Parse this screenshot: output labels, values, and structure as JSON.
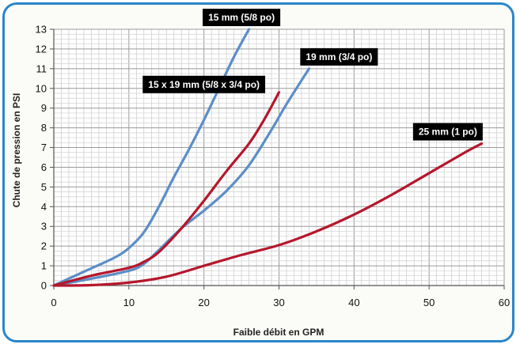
{
  "chart_data": {
    "type": "line",
    "title": "",
    "xlabel": "Faible débit en GPM",
    "ylabel": "Chute de pression en PSI",
    "xlim": [
      0,
      60
    ],
    "ylim": [
      0,
      13
    ],
    "xticks": [
      0,
      10,
      20,
      30,
      40,
      50,
      60
    ],
    "yticks": [
      0,
      1,
      2,
      3,
      4,
      5,
      6,
      7,
      8,
      9,
      10,
      11,
      12,
      13
    ],
    "grid": true,
    "colors": {
      "blue": "#5b8ec7",
      "red": "#b5172c",
      "label_bg": "#000000",
      "frame": "#2b86c8"
    },
    "series": [
      {
        "name": "15 mm (5/8 po)",
        "color": "#5b8ec7",
        "points": [
          [
            0,
            0
          ],
          [
            4,
            0.7
          ],
          [
            8,
            1.4
          ],
          [
            10,
            1.9
          ],
          [
            12,
            2.7
          ],
          [
            14,
            4.0
          ],
          [
            16,
            5.5
          ],
          [
            18,
            6.9
          ],
          [
            20,
            8.4
          ],
          [
            22,
            10.0
          ],
          [
            24,
            11.6
          ],
          [
            26,
            13.0
          ]
        ]
      },
      {
        "name": "19 mm (3/4 po)",
        "color": "#5b8ec7",
        "points": [
          [
            0,
            0
          ],
          [
            5,
            0.35
          ],
          [
            10,
            0.75
          ],
          [
            12,
            1.1
          ],
          [
            14,
            1.8
          ],
          [
            17,
            2.9
          ],
          [
            20,
            3.8
          ],
          [
            23,
            4.8
          ],
          [
            26,
            6.1
          ],
          [
            29,
            7.9
          ],
          [
            31,
            9.2
          ],
          [
            34,
            11.0
          ]
        ]
      },
      {
        "name": "15 x 19 mm (5/8 x 3/4 po)",
        "color": "#b5172c",
        "points": [
          [
            0,
            0
          ],
          [
            5,
            0.5
          ],
          [
            10,
            0.9
          ],
          [
            12,
            1.2
          ],
          [
            14,
            1.7
          ],
          [
            17,
            2.9
          ],
          [
            20,
            4.3
          ],
          [
            23,
            5.8
          ],
          [
            26,
            7.2
          ],
          [
            28,
            8.4
          ],
          [
            30,
            9.8
          ]
        ]
      },
      {
        "name": "25 mm (1 po)",
        "color": "#b5172c",
        "points": [
          [
            0,
            0
          ],
          [
            5,
            0.02
          ],
          [
            10,
            0.15
          ],
          [
            15,
            0.45
          ],
          [
            20,
            1.0
          ],
          [
            25,
            1.55
          ],
          [
            30,
            2.05
          ],
          [
            35,
            2.75
          ],
          [
            40,
            3.6
          ],
          [
            45,
            4.6
          ],
          [
            50,
            5.7
          ],
          [
            55,
            6.8
          ],
          [
            57,
            7.2
          ]
        ]
      }
    ],
    "annotations": [
      {
        "text": "15 mm (5/8 po)",
        "x": 25,
        "y": 13.6
      },
      {
        "text": "19 mm (3/4 po)",
        "x": 38,
        "y": 11.6
      },
      {
        "text": "15 x 19 mm (5/8 x 3/4 po)",
        "x": 20,
        "y": 10.2
      },
      {
        "text": "25 mm (1 po)",
        "x": 52.5,
        "y": 7.8
      }
    ]
  }
}
